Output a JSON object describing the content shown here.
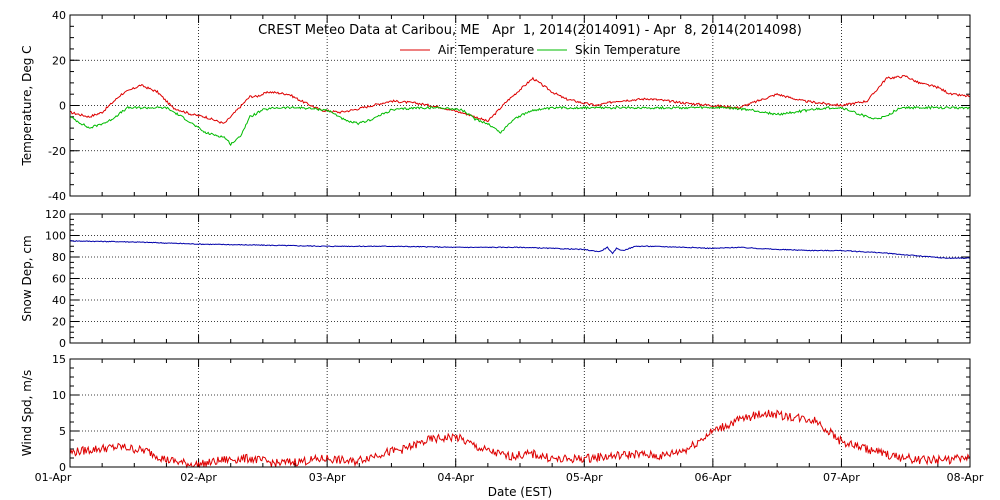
{
  "chart_data": {
    "type": "line",
    "title": "CREST Meteo Data at Caribou, ME   Apr  1, 2014(2014091) - Apr  8, 2014(2014098)",
    "xlabel": "Date (EST)",
    "x_tick_labels": [
      "01-Apr",
      "02-Apr",
      "03-Apr",
      "04-Apr",
      "05-Apr",
      "06-Apr",
      "07-Apr",
      "08-Apr"
    ],
    "x_range_days": [
      0,
      7
    ],
    "panels": [
      {
        "ylabel": "Temperature, Deg C",
        "ylim": [
          -40,
          40
        ],
        "yticks": [
          "40",
          "20",
          "0",
          "-20",
          "-40"
        ],
        "ytick_values": [
          40,
          20,
          0,
          -20,
          -40
        ],
        "legend": "top-center",
        "series": [
          {
            "name": "Air Temperature",
            "color": "#dd0000",
            "x": [
              0,
              0.15,
              0.25,
              0.4,
              0.55,
              0.68,
              0.8,
              0.95,
              1.05,
              1.2,
              1.3,
              1.4,
              1.45,
              1.55,
              1.7,
              1.8,
              1.95,
              2.1,
              2.2,
              2.35,
              2.5,
              2.7,
              2.9,
              3.1,
              3.25,
              3.4,
              3.5,
              3.6,
              3.75,
              3.85,
              4.0,
              4.1,
              4.25,
              4.5,
              4.8,
              5.0,
              5.2,
              5.4,
              5.5,
              5.7,
              5.85,
              6.0,
              6.2,
              6.35,
              6.5,
              6.6,
              6.75,
              6.85,
              7.0
            ],
            "y": [
              -3,
              -5,
              -3,
              5,
              9,
              6,
              -1,
              -4,
              -5,
              -8,
              -2,
              4,
              4,
              6,
              5,
              2,
              -2,
              -3,
              -2,
              0,
              2,
              1,
              -1,
              -4,
              -7,
              2,
              7,
              12,
              6,
              3,
              1,
              0,
              2,
              3,
              1,
              0,
              -1,
              3,
              5,
              2,
              1,
              0,
              2,
              12,
              13,
              10,
              8,
              5,
              4
            ]
          },
          {
            "name": "Skin Temperature",
            "color": "#00bb00",
            "x": [
              0,
              0.15,
              0.3,
              0.45,
              0.6,
              0.75,
              0.9,
              1.05,
              1.2,
              1.25,
              1.32,
              1.4,
              1.5,
              1.6,
              1.8,
              2.0,
              2.1,
              2.15,
              2.25,
              2.35,
              2.5,
              2.7,
              2.9,
              3.05,
              3.15,
              3.25,
              3.35,
              3.45,
              3.6,
              3.8,
              4.0,
              4.3,
              4.6,
              4.9,
              5.1,
              5.3,
              5.5,
              5.75,
              5.9,
              6.0,
              6.15,
              6.25,
              6.35,
              6.45,
              6.6,
              6.8,
              7.0
            ],
            "y": [
              -5,
              -10,
              -7,
              -1,
              -1,
              -1,
              -6,
              -12,
              -14,
              -17,
              -14,
              -5,
              -2,
              -1,
              -1,
              -2,
              -5,
              -7,
              -8,
              -6,
              -2,
              -1,
              -1,
              -2,
              -6,
              -8,
              -12,
              -6,
              -2,
              -1,
              -1,
              -1,
              -1,
              -1,
              -1,
              -2,
              -4,
              -2,
              -1,
              -1,
              -4,
              -6,
              -5,
              -1,
              -1,
              -1,
              -1
            ]
          }
        ]
      },
      {
        "ylabel": "Snow Dep, cm",
        "ylim": [
          0,
          120
        ],
        "yticks": [
          "120",
          "100",
          "80",
          "60",
          "40",
          "20",
          "0"
        ],
        "ytick_values": [
          120,
          100,
          80,
          60,
          40,
          20,
          0
        ],
        "series": [
          {
            "color": "#0000aa",
            "x": [
              0,
              0.5,
              1.0,
              1.5,
              2.0,
              2.5,
              3.0,
              3.5,
              4.0,
              4.05,
              4.12,
              4.18,
              4.22,
              4.25,
              4.3,
              4.4,
              4.5,
              4.8,
              5.0,
              5.2,
              5.5,
              5.8,
              6.0,
              6.3,
              6.6,
              6.8,
              7.0
            ],
            "y": [
              95,
              94,
              92,
              91,
              90,
              90,
              89,
              89,
              87,
              86,
              85,
              89,
              83,
              88,
              86,
              90,
              90,
              89,
              88,
              89,
              87,
              86,
              86,
              84,
              81,
              79,
              79
            ]
          }
        ]
      },
      {
        "ylabel": "Wind Spd, m/s",
        "ylim": [
          0,
          15
        ],
        "yticks": [
          "15",
          "10",
          "5",
          "0"
        ],
        "ytick_values": [
          15,
          10,
          5,
          0
        ],
        "series": [
          {
            "color": "#dd0000",
            "x": [
              0,
              0.2,
              0.4,
              0.6,
              0.75,
              0.9,
              1.0,
              1.2,
              1.4,
              1.6,
              1.8,
              2.0,
              2.2,
              2.4,
              2.6,
              2.8,
              3.0,
              3.2,
              3.4,
              3.6,
              3.8,
              4.0,
              4.2,
              4.4,
              4.6,
              4.8,
              5.0,
              5.2,
              5.4,
              5.6,
              5.8,
              6.0,
              6.2,
              6.4,
              6.6,
              6.8,
              7.0
            ],
            "y": [
              2,
              2.5,
              2.8,
              2.2,
              1,
              0.5,
              0.3,
              1,
              1.2,
              0.5,
              0.8,
              1.2,
              0.7,
              1.8,
              2.5,
              3.8,
              4.2,
              2.5,
              1.5,
              1.8,
              1,
              1.2,
              1.5,
              1.8,
              1.5,
              2.5,
              5,
              6.5,
              7.5,
              7,
              6.5,
              3.5,
              2.5,
              1.5,
              1,
              1,
              1.2
            ]
          }
        ]
      }
    ]
  }
}
